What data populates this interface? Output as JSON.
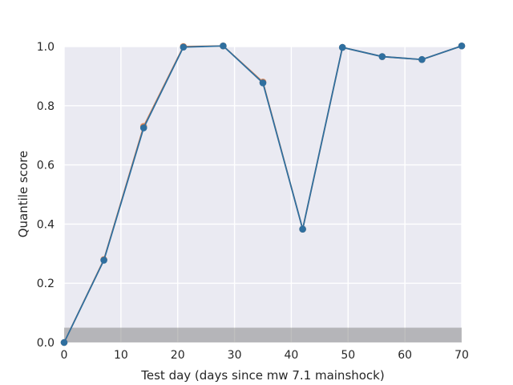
{
  "chart_data": {
    "type": "line",
    "title": "",
    "xlabel": "Test day (days since mw 7.1 mainshock)",
    "ylabel": "Quantile score",
    "xlim": [
      0,
      70
    ],
    "ylim": [
      0,
      1
    ],
    "x_ticks": [
      0,
      10,
      20,
      30,
      40,
      50,
      60,
      70
    ],
    "y_ticks": [
      "0.0",
      "0.2",
      "0.4",
      "0.6",
      "0.8",
      "1.0"
    ],
    "grid": true,
    "legend": "none",
    "background_color": "#EAEAF2",
    "shaded_band": {
      "y_from": 0,
      "y_to": 0.05,
      "color": "#808080"
    },
    "series": [
      {
        "color": "#DD8452",
        "x": [
          0,
          7,
          14,
          21,
          28,
          35,
          42,
          49,
          56,
          63,
          70
        ],
        "y": [
          0.0,
          0.28,
          0.73,
          1.0,
          1.002,
          0.88,
          0.383,
          0.997,
          0.966,
          0.956,
          1.002
        ]
      },
      {
        "color": "#2F6F9F",
        "x": [
          0,
          7,
          14,
          21,
          28,
          35,
          42,
          49,
          56,
          63,
          70
        ],
        "y": [
          0.0,
          0.278,
          0.725,
          0.998,
          1.002,
          0.877,
          0.383,
          0.997,
          0.966,
          0.956,
          1.002
        ]
      }
    ]
  }
}
